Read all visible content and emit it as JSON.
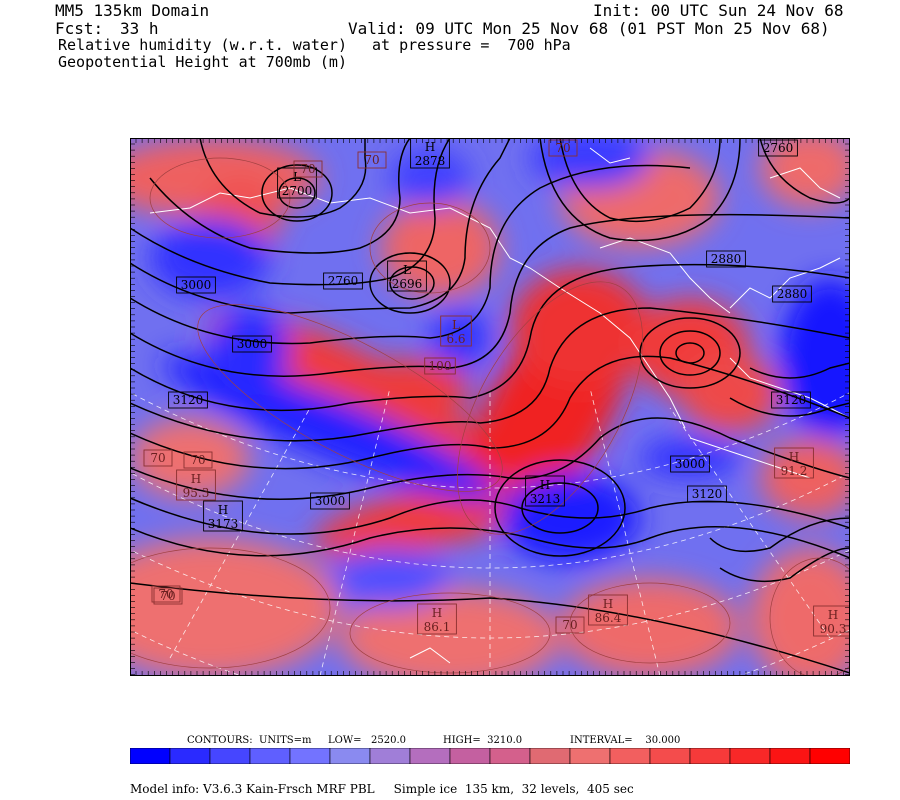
{
  "header": {
    "domain": "MM5 135km Domain",
    "init": "Init: 00 UTC Sun 24 Nov 68",
    "fcst_label": "Fcst:",
    "fcst_value": "33 h",
    "valid": "Valid: 09 UTC Mon 25 Nov 68 (01 PST Mon 25 Nov 68)",
    "field1": "Relative humidity (w.r.t. water)",
    "pressure": "at pressure =  700 hPa",
    "field2": "Geopotential Height at 700mb (m)"
  },
  "map_labels": [
    {
      "t": "L",
      "v": "2700"
    },
    {
      "t": "H",
      "v": "2878"
    },
    {
      "t": "L",
      "v": "2696"
    },
    {
      "t": "",
      "v": "2760"
    },
    {
      "t": "",
      "v": "3000"
    },
    {
      "t": "",
      "v": "2880"
    },
    {
      "t": "",
      "v": "2760"
    },
    {
      "t": "",
      "v": "3120"
    },
    {
      "t": "",
      "v": "3120"
    },
    {
      "t": "",
      "v": "3120"
    },
    {
      "t": "H",
      "v": "3213"
    },
    {
      "t": "H",
      "v": "3173"
    },
    {
      "t": "",
      "v": "3000"
    },
    {
      "t": "",
      "v": "3000"
    },
    {
      "t": "",
      "v": "3000"
    },
    {
      "t": "",
      "v": "2880"
    },
    {
      "t": "H",
      "v": "86.1"
    },
    {
      "t": "H",
      "v": "86.4"
    },
    {
      "t": "H",
      "v": "90.3"
    },
    {
      "t": "H",
      "v": "91.2"
    },
    {
      "t": "H",
      "v": "95.3"
    },
    {
      "t": "",
      "v": "70"
    },
    {
      "t": "",
      "v": "70"
    },
    {
      "t": "",
      "v": "70"
    },
    {
      "t": "",
      "v": "70"
    },
    {
      "t": "",
      "v": "70"
    },
    {
      "t": "",
      "v": "70"
    },
    {
      "t": "",
      "v": "70"
    },
    {
      "t": "",
      "v": "70"
    },
    {
      "t": "L",
      "v": "6.6"
    },
    {
      "t": "",
      "v": "100"
    }
  ],
  "colorbar": {
    "colors": [
      "#0000ff",
      "#2a2aff",
      "#4646ff",
      "#5f5fff",
      "#7373ff",
      "#8a8af0",
      "#a07ed8",
      "#b46ebe",
      "#c460a0",
      "#d4608c",
      "#e06a72",
      "#ee7070",
      "#f25f5f",
      "#f44c4c",
      "#f63a3a",
      "#f82828",
      "#fb1414",
      "#ff0000"
    ]
  },
  "contours_info": {
    "units_label": "CONTOURS:  UNITS=m",
    "low": "LOW=   2520.0",
    "high": "HIGH=  3210.0",
    "interval": "INTERVAL=    30.000"
  },
  "footer": "Model info: V3.6.3 Kain-Frsch MRF PBL     Simple ice  135 km,  32 levels,  405 sec"
}
